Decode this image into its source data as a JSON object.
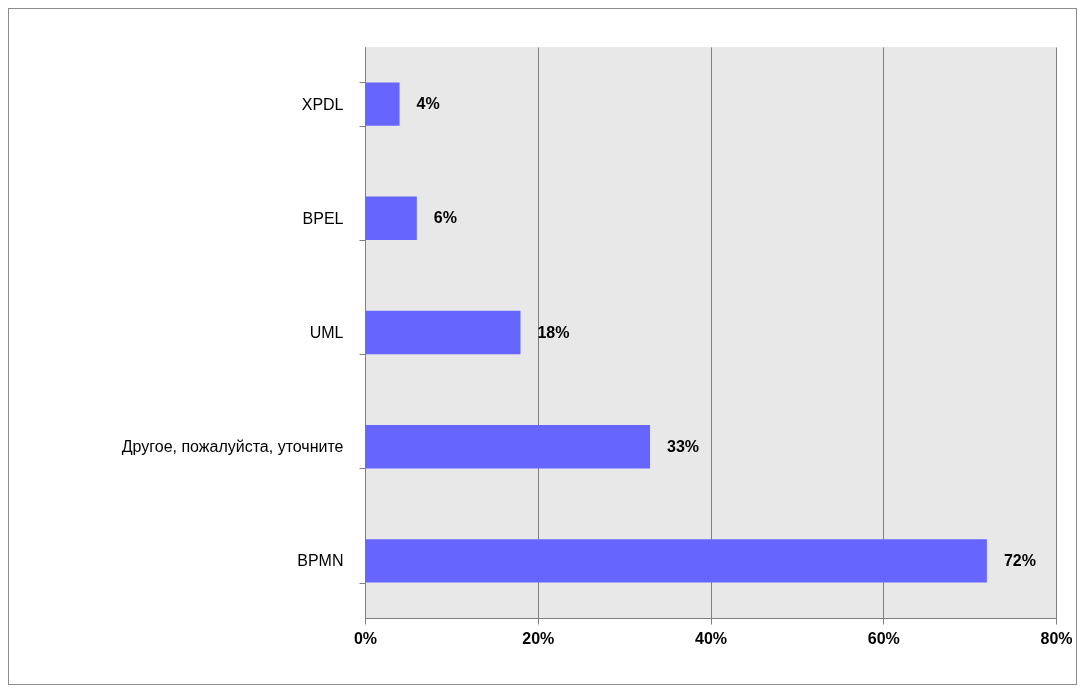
{
  "chart_data": {
    "type": "bar",
    "orientation": "horizontal",
    "categories": [
      "XPDL",
      "BPEL",
      "UML",
      "Другое, пожалуйста,  уточните",
      "BPMN"
    ],
    "values": [
      4,
      6,
      18,
      33,
      72
    ],
    "value_labels": [
      "4%",
      "6%",
      "18%",
      "33%",
      "72%"
    ],
    "color": "#6666ff",
    "xlim": [
      0,
      80
    ],
    "xticks": [
      {
        "value": 0,
        "label": "0%"
      },
      {
        "value": 20,
        "label": "20%"
      },
      {
        "value": 40,
        "label": "40%"
      },
      {
        "value": 60,
        "label": "60%"
      },
      {
        "value": 80,
        "label": "80%"
      }
    ],
    "grid": "x"
  }
}
